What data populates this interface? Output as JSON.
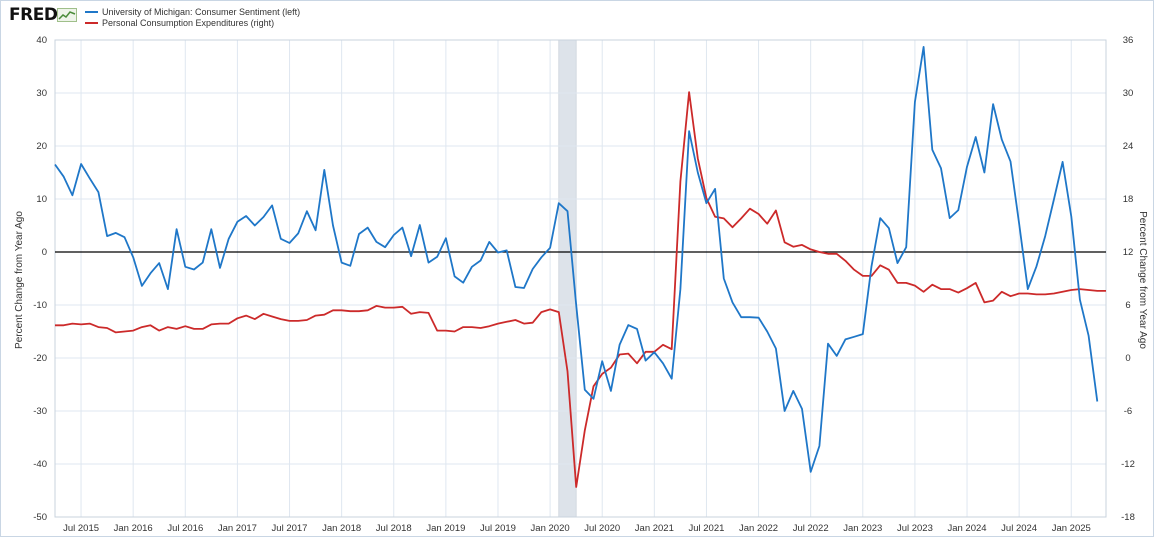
{
  "header": {
    "logo_text": "FRED",
    "logo_icon": "fred-chart-icon"
  },
  "colors": {
    "series_left": "#1f77c8",
    "series_right": "#cc2a2a",
    "recession": "#dde3ea",
    "grid": "#dfe7f0",
    "zero_line": "#000000"
  },
  "chart_data": {
    "type": "line",
    "legend_position": "top-left",
    "grid": true,
    "x_range": [
      "2015-04-01",
      "2025-05-01"
    ],
    "x_tick_labels": [
      "Jul 2015",
      "Jan 2016",
      "Jul 2016",
      "Jan 2017",
      "Jul 2017",
      "Jan 2018",
      "Jul 2018",
      "Jan 2019",
      "Jul 2019",
      "Jan 2020",
      "Jul 2020",
      "Jan 2021",
      "Jul 2021",
      "Jan 2022",
      "Jul 2022",
      "Jan 2023",
      "Jul 2023",
      "Jan 2024",
      "Jul 2024",
      "Jan 2025"
    ],
    "x_tick_dates": [
      "2015-07-01",
      "2016-01-01",
      "2016-07-01",
      "2017-01-01",
      "2017-07-01",
      "2018-01-01",
      "2018-07-01",
      "2019-01-01",
      "2019-07-01",
      "2020-01-01",
      "2020-07-01",
      "2021-01-01",
      "2021-07-01",
      "2022-01-01",
      "2022-07-01",
      "2023-01-01",
      "2023-07-01",
      "2024-01-01",
      "2024-07-01",
      "2025-01-01"
    ],
    "y_left": {
      "label": "Percent Change from Year Ago",
      "range": [
        -50,
        40
      ],
      "ticks": [
        40,
        30,
        20,
        10,
        0,
        -10,
        -20,
        -30,
        -40,
        -50
      ]
    },
    "y_right": {
      "label": "Percent Change from Year Ago",
      "range": [
        -18,
        36
      ],
      "ticks": [
        36,
        30,
        24,
        18,
        12,
        6,
        0,
        -6,
        -12,
        -18
      ]
    },
    "recession_shading": [
      {
        "start": "2020-02-01",
        "end": "2020-04-01"
      }
    ],
    "series": [
      {
        "name": "University of Michigan: Consumer Sentiment (left)",
        "axis": "left",
        "start": "2015-04-01",
        "values": [
          16.5,
          14.2,
          10.7,
          16.6,
          13.9,
          11.3,
          3.0,
          3.6,
          2.8,
          -1.0,
          -6.4,
          -4.0,
          -2.1,
          -7.0,
          4.3,
          -2.8,
          -3.3,
          -2.0,
          4.3,
          -3.0,
          2.5,
          5.7,
          6.8,
          5.0,
          6.6,
          8.8,
          2.5,
          1.7,
          3.5,
          7.7,
          4.1,
          15.5,
          5.0,
          -2.0,
          -2.6,
          3.4,
          4.6,
          1.9,
          0.9,
          3.2,
          4.6,
          -0.8,
          5.1,
          -2.0,
          -0.9,
          2.6,
          -4.6,
          -5.8,
          -2.8,
          -1.6,
          1.9,
          -0.1,
          0.3,
          -6.6,
          -6.8,
          -3.2,
          -1.0,
          0.8,
          9.2,
          7.7,
          -10.0,
          -26.0,
          -27.7,
          -20.6,
          -26.2,
          -17.5,
          -13.8,
          -14.5,
          -20.5,
          -18.9,
          -21.0,
          -23.9,
          -7.0,
          22.8,
          15.0,
          9.2,
          11.9,
          -5.0,
          -9.5,
          -12.3,
          -12.3,
          -12.4,
          -15.0,
          -18.2,
          -30.0,
          -26.2,
          -29.6,
          -41.5,
          -36.6,
          -17.3,
          -19.6,
          -16.5,
          -16.0,
          -15.5,
          -2.7,
          6.4,
          4.5,
          -2.1,
          0.9,
          28.3,
          38.7,
          19.3,
          15.8,
          6.4,
          7.9,
          16.1,
          21.7,
          15.0,
          27.9,
          21.2,
          17.1,
          5.4,
          -7.0,
          -2.7,
          3.0,
          9.9,
          17.0,
          6.7,
          -9.0,
          -15.8,
          -28.2
        ]
      },
      {
        "name": "Personal Consumption Expenditures (right)",
        "axis": "right",
        "start": "2015-04-01",
        "values": [
          3.7,
          3.7,
          3.9,
          3.8,
          3.9,
          3.5,
          3.4,
          2.9,
          3.0,
          3.1,
          3.5,
          3.7,
          3.1,
          3.5,
          3.3,
          3.6,
          3.3,
          3.3,
          3.8,
          3.9,
          3.9,
          4.5,
          4.8,
          4.4,
          5.0,
          4.7,
          4.4,
          4.2,
          4.2,
          4.3,
          4.8,
          4.9,
          5.4,
          5.4,
          5.3,
          5.3,
          5.4,
          5.9,
          5.7,
          5.7,
          5.8,
          5.0,
          5.2,
          5.1,
          3.1,
          3.1,
          3.0,
          3.5,
          3.5,
          3.4,
          3.6,
          3.9,
          4.1,
          4.3,
          3.9,
          4.0,
          5.2,
          5.5,
          5.2,
          -1.5,
          -14.6,
          -8.2,
          -3.2,
          -1.8,
          -1.1,
          0.4,
          0.5,
          -0.6,
          0.7,
          0.7,
          1.5,
          1.0,
          20.0,
          30.1,
          22.6,
          18.1,
          16.0,
          15.8,
          14.8,
          15.8,
          16.9,
          16.3,
          15.2,
          16.7,
          13.1,
          12.6,
          12.8,
          12.3,
          12.0,
          11.8,
          11.8,
          11.0,
          10.0,
          9.3,
          9.3,
          10.5,
          10.0,
          8.5,
          8.5,
          8.2,
          7.5,
          8.3,
          7.8,
          7.8,
          7.4,
          7.9,
          8.5,
          6.3,
          6.5,
          7.5,
          7.0,
          7.3,
          7.3,
          7.2,
          7.2,
          7.3,
          7.5,
          7.7,
          7.8,
          7.7,
          7.6,
          7.6
        ]
      }
    ]
  }
}
